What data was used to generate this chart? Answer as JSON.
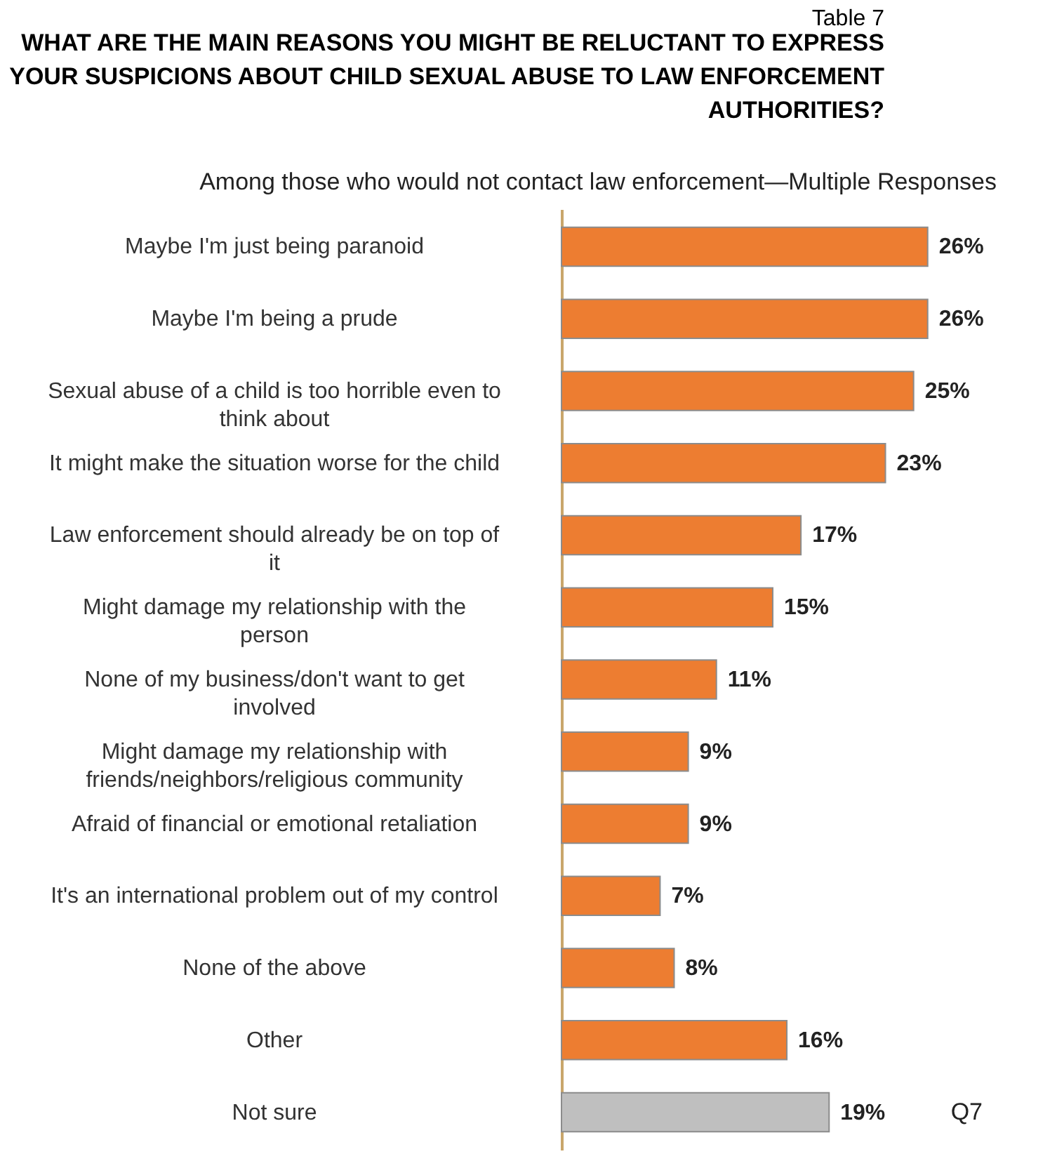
{
  "chart_data": {
    "type": "bar",
    "orientation": "horizontal",
    "title": "Table 7",
    "subtitle": "WHAT ARE THE MAIN REASONS YOU MIGHT BE RELUCTANT TO EXPRESS\nYOUR SUSPICIONS ABOUT CHILD SEXUAL ABUSE TO LAW ENFORCEMENT\nAUTHORITIES?",
    "annotations": [
      "Among those who would not contact law enforcement—Multiple Responses",
      "Q7"
    ],
    "categories": [
      "Maybe I'm just being paranoid",
      "Maybe I'm being a prude",
      "Sexual abuse of a child is too horrible even to\nthink about",
      "It might make the situation worse for the child",
      "Law enforcement should already be on top of\nit",
      "Might damage my relationship with the\nperson",
      "None of my business/don't want to get\ninvolved",
      "Might damage my relationship with\nfriends/neighbors/religious community",
      "Afraid of financial or emotional retaliation",
      "It's an international problem out of my control",
      "None of the above",
      "Other",
      "Not sure"
    ],
    "values": [
      26,
      26,
      25,
      23,
      17,
      15,
      11,
      9,
      9,
      7,
      8,
      16,
      19
    ],
    "colors": [
      "#ed7d31",
      "#ed7d31",
      "#ed7d31",
      "#ed7d31",
      "#ed7d31",
      "#ed7d31",
      "#ed7d31",
      "#ed7d31",
      "#ed7d31",
      "#ed7d31",
      "#ed7d31",
      "#ed7d31",
      "#bfbfbf"
    ],
    "value_labels": [
      "26%",
      "26%",
      "25%",
      "23%",
      "17%",
      "15%",
      "11%",
      "9%",
      "9%",
      "7%",
      "8%",
      "16%",
      "19%"
    ],
    "grid": false
  }
}
